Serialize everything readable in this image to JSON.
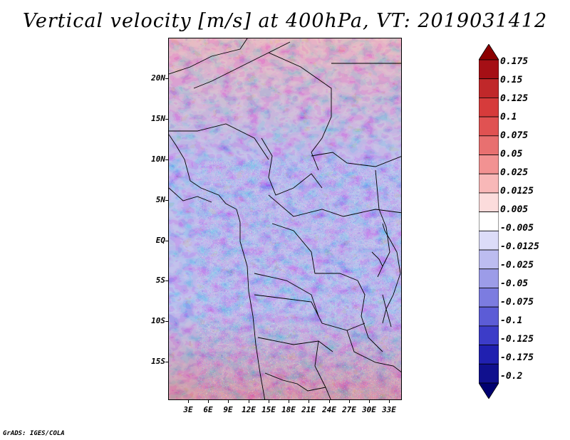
{
  "title": "Vertical velocity [m/s] at 400hPa, VT: 2019031412",
  "footer": "GrADS: IGES/COLA",
  "lat_labels": [
    "20N",
    "15N",
    "10N",
    "5N",
    "EQ",
    "5S",
    "10S",
    "15S"
  ],
  "lon_labels": [
    "3E",
    "6E",
    "9E",
    "12E",
    "15E",
    "18E",
    "21E",
    "24E",
    "27E",
    "30E",
    "33E"
  ],
  "colorbar": {
    "labels": [
      "0.175",
      "0.15",
      "0.125",
      "0.1",
      "0.075",
      "0.05",
      "0.025",
      "0.0125",
      "0.005",
      "-0.005",
      "-0.0125",
      "-0.025",
      "-0.05",
      "-0.075",
      "-0.1",
      "-0.125",
      "-0.175",
      "-0.2"
    ],
    "colors": [
      "#8b0000",
      "#a50f15",
      "#c0282a",
      "#d63b3b",
      "#e05252",
      "#e87070",
      "#f29292",
      "#f8b8b8",
      "#fcdcdc",
      "#ffffff",
      "#dcdcf8",
      "#bcbcf0",
      "#9c9ce8",
      "#7c7ce0",
      "#5c5cd6",
      "#3c3cc8",
      "#2020b0",
      "#10108e",
      "#000070"
    ]
  }
}
